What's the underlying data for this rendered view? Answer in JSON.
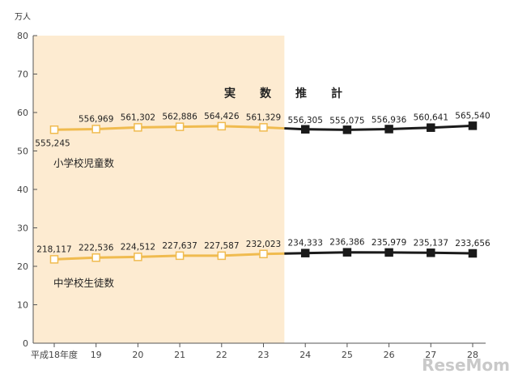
{
  "colors": {
    "actual": "#f0bb4f",
    "projected": "#1a1a1a",
    "shade": "#fdebd1",
    "axis": "#555555",
    "grid": "#d6d6d6"
  },
  "y_unit": "万人",
  "banner": {
    "actual": "実　数",
    "projected": "推　計"
  },
  "watermark": "ReseMom",
  "chart_data": {
    "type": "line",
    "categories": [
      "平成18年度",
      "19",
      "20",
      "21",
      "22",
      "23",
      "24",
      "25",
      "26",
      "27",
      "28"
    ],
    "ylim": [
      0,
      80
    ],
    "y_ticks": [
      0,
      10,
      20,
      30,
      40,
      50,
      60,
      70,
      80
    ],
    "grid": false,
    "actual_range": [
      0,
      5
    ],
    "projected_range": [
      6,
      10
    ],
    "series": [
      {
        "name": "小学校児童数",
        "values": [
          55.5245,
          55.6969,
          56.1302,
          56.2886,
          56.4426,
          56.1329,
          55.6305,
          55.5075,
          55.6936,
          56.0641,
          56.554
        ],
        "labels": [
          "555,245",
          "556,969",
          "561,302",
          "562,886",
          "564,426",
          "561,329",
          "556,305",
          "555,075",
          "556,936",
          "560,641",
          "565,540"
        ]
      },
      {
        "name": "中学校生徒数",
        "values": [
          21.8117,
          22.2536,
          22.4512,
          22.7637,
          22.7587,
          23.2023,
          23.4333,
          23.6386,
          23.5979,
          23.5137,
          23.3656
        ],
        "labels": [
          "218,117",
          "222,536",
          "224,512",
          "227,637",
          "227,587",
          "232,023",
          "234,333",
          "236,386",
          "235,979",
          "235,137",
          "233,656"
        ]
      }
    ]
  }
}
